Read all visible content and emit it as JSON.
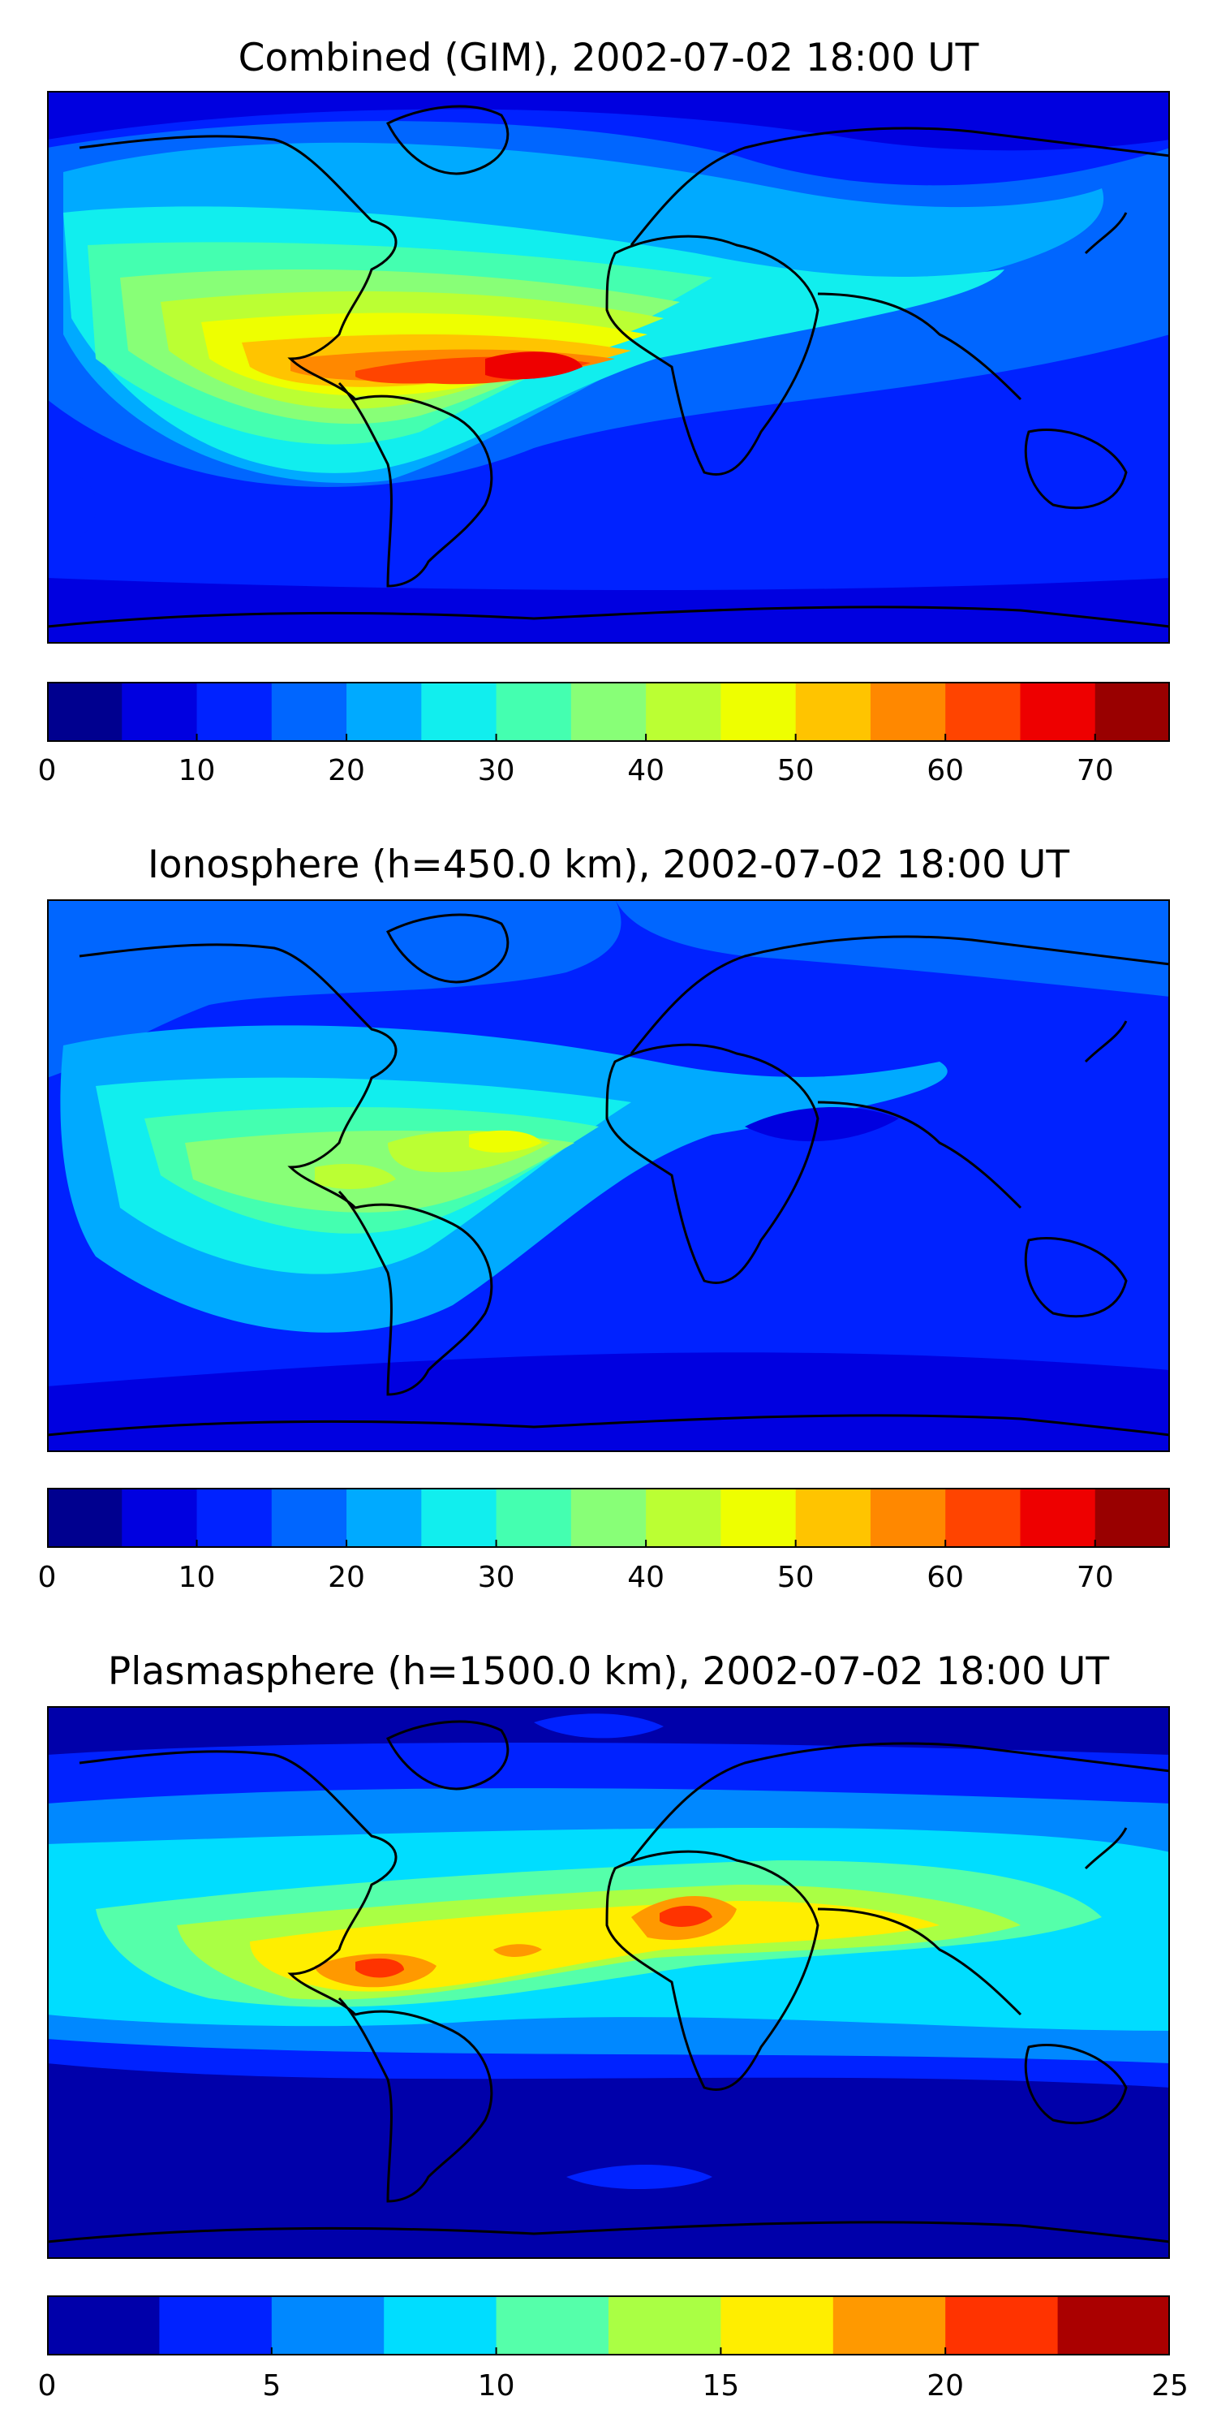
{
  "panels": [
    {
      "title": "Combined (GIM), 2002-07-02 18:00 UT",
      "colorbar_ticks": [
        "0",
        "10",
        "20",
        "30",
        "40",
        "50",
        "60",
        "70"
      ],
      "colorbar_tick_values": [
        0,
        10,
        20,
        30,
        40,
        50,
        60,
        70
      ],
      "colorbar_range": [
        0,
        75
      ],
      "colorbar_colors": [
        "#00008f",
        "#0000e0",
        "#0022ff",
        "#0066ff",
        "#00aaff",
        "#11eeee",
        "#44ffb0",
        "#88ff77",
        "#bbff33",
        "#eeff00",
        "#ffc400",
        "#ff8800",
        "#ff4400",
        "#ee0000",
        "#990000"
      ]
    },
    {
      "title": "Ionosphere  (h=450.0 km), 2002-07-02 18:00 UT",
      "colorbar_ticks": [
        "0",
        "10",
        "20",
        "30",
        "40",
        "50",
        "60",
        "70"
      ],
      "colorbar_tick_values": [
        0,
        10,
        20,
        30,
        40,
        50,
        60,
        70
      ],
      "colorbar_range": [
        0,
        75
      ],
      "colorbar_colors": [
        "#00008f",
        "#0000e0",
        "#0022ff",
        "#0066ff",
        "#00aaff",
        "#11eeee",
        "#44ffb0",
        "#88ff77",
        "#bbff33",
        "#eeff00",
        "#ffc400",
        "#ff8800",
        "#ff4400",
        "#ee0000",
        "#990000"
      ]
    },
    {
      "title": "Plasmasphere (h=1500.0 km), 2002-07-02 18:00 UT",
      "colorbar_ticks": [
        "0",
        "5",
        "10",
        "15",
        "20",
        "25"
      ],
      "colorbar_tick_values": [
        0,
        5,
        10,
        15,
        20,
        25
      ],
      "colorbar_range": [
        0,
        25
      ],
      "colorbar_colors": [
        "#0000aa",
        "#0022ff",
        "#0088ff",
        "#00ddff",
        "#55ffaa",
        "#aaff44",
        "#ffee00",
        "#ff9900",
        "#ff3300",
        "#aa0000"
      ]
    }
  ]
}
